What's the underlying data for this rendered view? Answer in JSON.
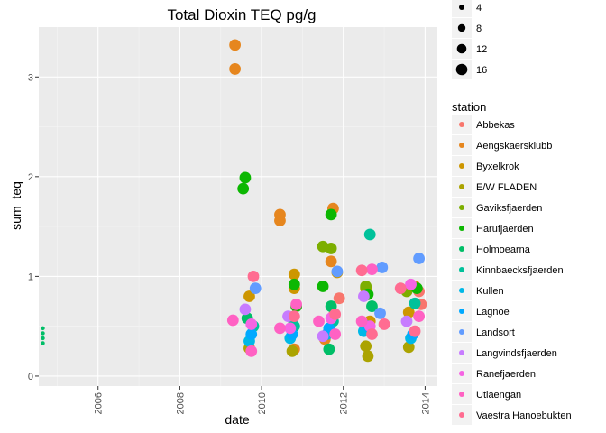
{
  "chart_data": {
    "type": "scatter",
    "title": "Total Dioxin TEQ pg/g",
    "xlabel": "date",
    "ylabel": "sum_teq",
    "x_ticks": [
      "2006",
      "2008",
      "2010",
      "2012",
      "2014"
    ],
    "y_ticks": [
      "0",
      "1",
      "2",
      "3"
    ],
    "xlim": [
      2004.55,
      2014.3
    ],
    "ylim": [
      -0.1,
      3.5
    ],
    "grid": true,
    "size_legend": {
      "title": "",
      "values": [
        "4",
        "8",
        "12",
        "16"
      ],
      "radii": [
        3,
        4.2,
        5.3,
        6.3
      ]
    },
    "color_legend": {
      "title": "station",
      "placement": "right"
    },
    "series": [
      {
        "name": "Abbekas",
        "color": "#F8766D",
        "points": [
          [
            2011.9,
            0.78
          ],
          [
            2011.75,
            0.6
          ],
          [
            2013.85,
            0.85
          ],
          [
            2013.9,
            0.72
          ]
        ]
      },
      {
        "name": "Aengskaersklubb",
        "color": "#E6861E",
        "points": [
          [
            2009.35,
            3.32
          ],
          [
            2009.35,
            3.08
          ],
          [
            2010.45,
            1.62
          ],
          [
            2010.45,
            1.56
          ],
          [
            2011.75,
            1.68
          ],
          [
            2011.7,
            1.15
          ],
          [
            2010.8,
            0.27
          ],
          [
            2011.55,
            0.37
          ]
        ]
      },
      {
        "name": "Byxelkrok",
        "color": "#CD9600",
        "points": [
          [
            2009.7,
            0.8
          ],
          [
            2010.8,
            1.02
          ],
          [
            2010.8,
            0.88
          ],
          [
            2011.85,
            1.04
          ],
          [
            2012.55,
            0.88
          ],
          [
            2012.65,
            0.55
          ],
          [
            2013.75,
            0.9
          ],
          [
            2013.6,
            0.64
          ]
        ]
      },
      {
        "name": "E/W FLADEN",
        "color": "#ABA300",
        "points": [
          [
            2009.7,
            0.28
          ],
          [
            2010.75,
            0.25
          ],
          [
            2012.6,
            0.2
          ],
          [
            2012.55,
            0.3
          ],
          [
            2013.6,
            0.29
          ]
        ]
      },
      {
        "name": "Gaviksfjaerden",
        "color": "#7CAE00",
        "points": [
          [
            2011.5,
            1.3
          ],
          [
            2011.7,
            1.28
          ],
          [
            2012.55,
            0.9
          ],
          [
            2013.55,
            0.85
          ]
        ]
      },
      {
        "name": "Harufjaerden",
        "color": "#0CB702",
        "points": [
          [
            2009.6,
            1.99
          ],
          [
            2009.55,
            1.88
          ],
          [
            2010.8,
            0.92
          ],
          [
            2010.85,
            0.7
          ],
          [
            2011.7,
            1.62
          ],
          [
            2011.5,
            0.9
          ],
          [
            2012.6,
            0.82
          ],
          [
            2013.8,
            0.88
          ]
        ]
      },
      {
        "name": "Holmoearna",
        "color": "#00BE67",
        "points": [
          [
            2004.65,
            0.48
          ],
          [
            2004.65,
            0.43
          ],
          [
            2004.65,
            0.38
          ],
          [
            2004.65,
            0.33
          ],
          [
            2009.65,
            0.58
          ],
          [
            2010.75,
            0.58
          ],
          [
            2011.65,
            0.27
          ],
          [
            2011.7,
            0.7
          ],
          [
            2012.7,
            0.7
          ]
        ]
      },
      {
        "name": "Kinnbaecksfjaerden",
        "color": "#00C19A",
        "points": [
          [
            2009.8,
            0.5
          ],
          [
            2010.8,
            0.5
          ],
          [
            2011.75,
            0.55
          ],
          [
            2012.65,
            1.42
          ],
          [
            2013.75,
            0.73
          ]
        ]
      },
      {
        "name": "Kullen",
        "color": "#00B8E7",
        "points": [
          [
            2009.7,
            0.35
          ],
          [
            2010.7,
            0.38
          ],
          [
            2011.6,
            0.42
          ],
          [
            2012.5,
            0.45
          ],
          [
            2013.65,
            0.38
          ]
        ]
      },
      {
        "name": "Lagnoe",
        "color": "#00A9FF",
        "points": [
          [
            2009.75,
            0.42
          ],
          [
            2010.75,
            0.42
          ],
          [
            2011.65,
            0.48
          ],
          [
            2012.6,
            0.5
          ],
          [
            2013.7,
            0.42
          ]
        ]
      },
      {
        "name": "Landsort",
        "color": "#619CFF",
        "points": [
          [
            2009.85,
            0.88
          ],
          [
            2011.85,
            1.05
          ],
          [
            2012.95,
            1.09
          ],
          [
            2012.9,
            0.63
          ],
          [
            2013.85,
            1.18
          ]
        ]
      },
      {
        "name": "Langvindsfjaerden",
        "color": "#C77CFF",
        "points": [
          [
            2009.6,
            0.67
          ],
          [
            2010.65,
            0.6
          ],
          [
            2011.5,
            0.4
          ],
          [
            2012.5,
            0.8
          ],
          [
            2013.55,
            0.55
          ]
        ]
      },
      {
        "name": "Ranefjaerden",
        "color": "#F564E3",
        "points": [
          [
            2009.75,
            0.52
          ],
          [
            2010.7,
            0.48
          ],
          [
            2011.7,
            0.58
          ],
          [
            2012.65,
            0.5
          ],
          [
            2013.65,
            0.92
          ]
        ]
      },
      {
        "name": "Utlaengan",
        "color": "#FF61C3",
        "points": [
          [
            2009.3,
            0.56
          ],
          [
            2009.75,
            0.25
          ],
          [
            2010.45,
            0.48
          ],
          [
            2010.85,
            0.72
          ],
          [
            2011.4,
            0.55
          ],
          [
            2011.8,
            0.42
          ],
          [
            2012.45,
            0.55
          ],
          [
            2012.7,
            1.07
          ],
          [
            2013.85,
            0.6
          ]
        ]
      },
      {
        "name": "Vaestra Hanoebukten",
        "color": "#FF6C91",
        "points": [
          [
            2009.8,
            1.0
          ],
          [
            2010.8,
            0.6
          ],
          [
            2011.8,
            0.62
          ],
          [
            2012.45,
            1.06
          ],
          [
            2013.0,
            0.52
          ],
          [
            2012.7,
            0.42
          ],
          [
            2013.4,
            0.88
          ],
          [
            2013.75,
            0.45
          ]
        ]
      }
    ]
  }
}
